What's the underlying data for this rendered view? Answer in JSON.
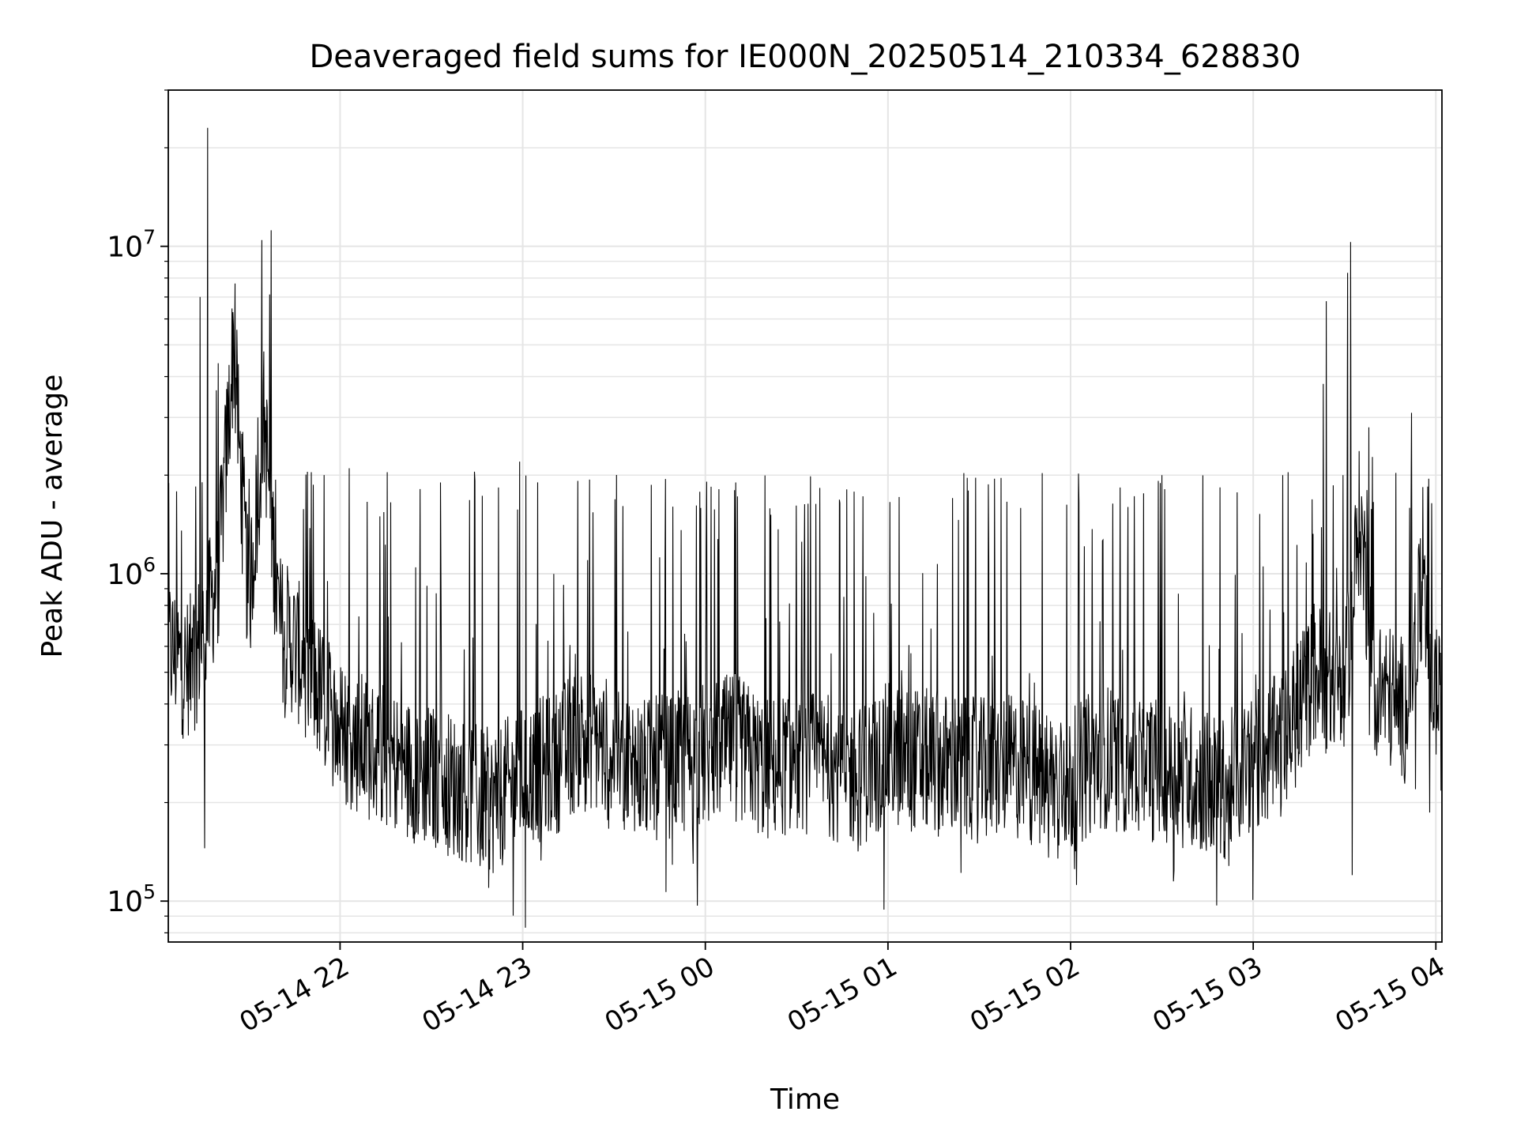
{
  "chart_data": {
    "type": "line",
    "title": "Deaveraged field sums for IE000N_20250514_210334_628830",
    "xlabel": "Time",
    "ylabel": "Peak ADU - average",
    "x_range": [
      "2025-05-14 21:03:34",
      "2025-05-15 04:02:00"
    ],
    "x_ticks": [
      {
        "t": "2025-05-14 22:00",
        "label": "05-14 22"
      },
      {
        "t": "2025-05-14 23:00",
        "label": "05-14 23"
      },
      {
        "t": "2025-05-15 00:00",
        "label": "05-15 00"
      },
      {
        "t": "2025-05-15 01:00",
        "label": "05-15 01"
      },
      {
        "t": "2025-05-15 02:00",
        "label": "05-15 02"
      },
      {
        "t": "2025-05-15 03:00",
        "label": "05-15 03"
      },
      {
        "t": "2025-05-15 04:00",
        "label": "05-15 04"
      }
    ],
    "y_scale": "log",
    "ylim": [
      75000,
      30000000
    ],
    "y_ticks": [
      {
        "value": 100000,
        "base": "10",
        "exp": "5"
      },
      {
        "value": 1000000,
        "base": "10",
        "exp": "6"
      },
      {
        "value": 10000000,
        "base": "10",
        "exp": "7"
      }
    ],
    "grid": true,
    "line_color": "#000000",
    "grid_color": "#e5e5e5",
    "series": [
      {
        "x": [
          "2025-05-14 21:03:34",
          "2025-05-14 21:10",
          "2025-05-14 21:15",
          "2025-05-14 21:20",
          "2025-05-14 21:25",
          "2025-05-14 21:30",
          "2025-05-14 21:35",
          "2025-05-14 21:40",
          "2025-05-14 21:45",
          "2025-05-14 21:50",
          "2025-05-14 21:55",
          "2025-05-14 22:00",
          "2025-05-14 22:10",
          "2025-05-14 22:20",
          "2025-05-14 22:30",
          "2025-05-14 22:40",
          "2025-05-14 22:50",
          "2025-05-14 23:00",
          "2025-05-14 23:10",
          "2025-05-14 23:20",
          "2025-05-14 23:30",
          "2025-05-14 23:40",
          "2025-05-14 23:50",
          "2025-05-15 00:00",
          "2025-05-15 00:10",
          "2025-05-15 00:20",
          "2025-05-15 00:30",
          "2025-05-15 00:40",
          "2025-05-15 00:50",
          "2025-05-15 01:00",
          "2025-05-15 01:10",
          "2025-05-15 01:20",
          "2025-05-15 01:30",
          "2025-05-15 01:40",
          "2025-05-15 01:50",
          "2025-05-15 02:00",
          "2025-05-15 02:10",
          "2025-05-15 02:20",
          "2025-05-15 02:30",
          "2025-05-15 02:40",
          "2025-05-15 02:50",
          "2025-05-15 03:00",
          "2025-05-15 03:10",
          "2025-05-15 03:20",
          "2025-05-15 03:30",
          "2025-05-15 03:35",
          "2025-05-15 03:40",
          "2025-05-15 03:45",
          "2025-05-15 03:50",
          "2025-05-15 03:55",
          "2025-05-15 04:02"
        ],
        "y": [
          600000,
          500000,
          650000,
          1000000,
          5000000,
          800000,
          3000000,
          700000,
          600000,
          500000,
          400000,
          330000,
          290000,
          260000,
          240000,
          220000,
          200000,
          240000,
          260000,
          330000,
          280000,
          250000,
          260000,
          280000,
          300000,
          250000,
          270000,
          260000,
          240000,
          280000,
          270000,
          260000,
          250000,
          260000,
          240000,
          230000,
          280000,
          260000,
          250000,
          240000,
          220000,
          270000,
          300000,
          500000,
          430000,
          1500000,
          460000,
          420000,
          380000,
          800000,
          350000
        ],
        "spikes": [
          {
            "x": "2025-05-14 21:14:00",
            "y": 7000000
          },
          {
            "x": "2025-05-14 21:16:30",
            "y": 23000000
          },
          {
            "x": "2025-05-14 21:25:30",
            "y": 7700000
          },
          {
            "x": "2025-05-14 21:33:00",
            "y": 3000000
          },
          {
            "x": "2025-05-14 22:03:00",
            "y": 2100000
          },
          {
            "x": "2025-05-14 22:33:00",
            "y": 1900000
          },
          {
            "x": "2025-05-14 22:59:00",
            "y": 2200000
          },
          {
            "x": "2025-05-15 00:10:00",
            "y": 1900000
          },
          {
            "x": "2025-05-15 01:35:00",
            "y": 1950000
          },
          {
            "x": "2025-05-15 02:30:00",
            "y": 2000000
          },
          {
            "x": "2025-05-15 03:23:00",
            "y": 3800000
          },
          {
            "x": "2025-05-15 03:24:00",
            "y": 6800000
          },
          {
            "x": "2025-05-15 03:31:00",
            "y": 8300000
          },
          {
            "x": "2025-05-15 03:32:00",
            "y": 10300000
          },
          {
            "x": "2025-05-15 03:38:00",
            "y": 2800000
          },
          {
            "x": "2025-05-15 03:52:00",
            "y": 3100000
          }
        ],
        "dips": [
          {
            "x": "2025-05-14 21:15:30",
            "y": 145000
          },
          {
            "x": "2025-05-14 22:46:00",
            "y": 128000
          },
          {
            "x": "2025-05-14 23:06:00",
            "y": 133000
          },
          {
            "x": "2025-05-14 23:56:00",
            "y": 130000
          },
          {
            "x": "2025-05-15 01:24:00",
            "y": 122000
          },
          {
            "x": "2025-05-15 02:48:00",
            "y": 97000
          },
          {
            "x": "2025-05-15 02:52:00",
            "y": 128000
          },
          {
            "x": "2025-05-15 03:32:30",
            "y": 120000
          }
        ]
      }
    ]
  }
}
